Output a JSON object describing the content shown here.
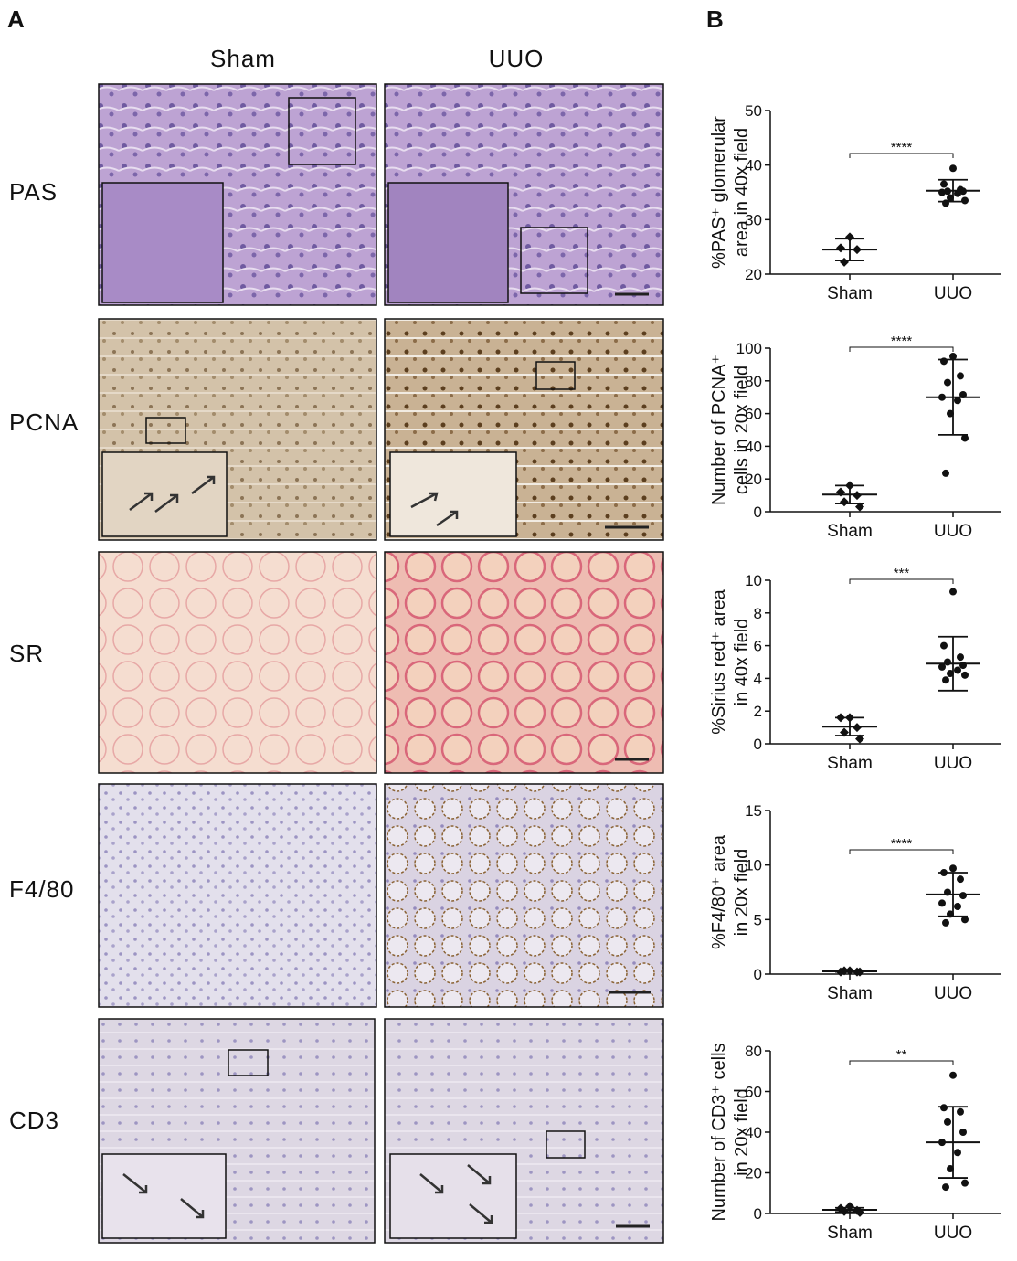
{
  "panels": {
    "a": "A",
    "b": "B"
  },
  "columns": [
    "Sham",
    "UUO"
  ],
  "rows": [
    "PAS",
    "PCNA",
    "SR",
    "F4/80",
    "CD3"
  ],
  "chart_data": [
    {
      "type": "dot",
      "ylabel": [
        "%PAS⁺ glomerular",
        "area in 40x field"
      ],
      "categories": [
        "Sham",
        "UUO"
      ],
      "groups": [
        {
          "values": [
            26.8,
            24.8,
            24.5,
            22.2
          ],
          "mean": 24.5,
          "sd": 2.0
        },
        {
          "values": [
            39.4,
            36.5,
            35.5,
            35.2,
            35.2,
            35.0,
            34.8,
            34.0,
            33.5,
            33.0
          ],
          "mean": 35.3,
          "sd": 2.0
        }
      ],
      "ylim": [
        20,
        50
      ],
      "yticks": [
        20,
        30,
        40,
        50
      ],
      "significance": "****"
    },
    {
      "type": "dot",
      "ylabel": [
        "Number of PCNA⁺",
        "cells in 20x field"
      ],
      "categories": [
        "Sham",
        "UUO"
      ],
      "groups": [
        {
          "values": [
            16,
            12,
            10,
            6,
            3
          ],
          "mean": 10.5,
          "sd": 5.5
        },
        {
          "values": [
            95,
            92,
            83,
            79,
            71.5,
            70,
            68,
            60,
            45,
            23.5
          ],
          "mean": 70,
          "sd": 23
        }
      ],
      "ylim": [
        0,
        100
      ],
      "yticks": [
        0,
        20,
        40,
        60,
        80,
        100
      ],
      "significance": "****"
    },
    {
      "type": "dot",
      "ylabel": [
        "%Sirius red⁺ area",
        "in 40x field"
      ],
      "categories": [
        "Sham",
        "UUO"
      ],
      "groups": [
        {
          "values": [
            1.6,
            1.6,
            1.0,
            0.7,
            0.3
          ],
          "mean": 1.05,
          "sd": 0.55
        },
        {
          "values": [
            9.3,
            6.0,
            5.3,
            5.0,
            4.8,
            4.7,
            4.5,
            4.3,
            4.2,
            3.9
          ],
          "mean": 4.9,
          "sd": 1.65
        }
      ],
      "ylim": [
        0,
        10
      ],
      "yticks": [
        0,
        2,
        4,
        6,
        8,
        10
      ],
      "significance": "***"
    },
    {
      "type": "dot",
      "ylabel": [
        "%F4/80⁺ area",
        "in 20x field"
      ],
      "categories": [
        "Sham",
        "UUO"
      ],
      "groups": [
        {
          "values": [
            0.3,
            0.2,
            0.2,
            0.3,
            0.2
          ],
          "mean": 0.25,
          "sd": 0.05
        },
        {
          "values": [
            9.7,
            9.3,
            8.7,
            7.5,
            7.2,
            6.5,
            6.2,
            5.5,
            5.0,
            4.7
          ],
          "mean": 7.3,
          "sd": 2.0
        }
      ],
      "ylim": [
        0,
        15
      ],
      "yticks": [
        0,
        5,
        10,
        15
      ],
      "significance": "****"
    },
    {
      "type": "dot",
      "ylabel": [
        "Number of CD3⁺ cells",
        "in 20x field"
      ],
      "categories": [
        "Sham",
        "UUO"
      ],
      "groups": [
        {
          "values": [
            3.5,
            2.5,
            1.5,
            1,
            0.5
          ],
          "mean": 1.8,
          "sd": 1.0
        },
        {
          "values": [
            68,
            52,
            50,
            45,
            40,
            35,
            30,
            22,
            15,
            13
          ],
          "mean": 35,
          "sd": 17.5
        }
      ],
      "ylim": [
        0,
        80
      ],
      "yticks": [
        0,
        20,
        40,
        60,
        80
      ],
      "significance": "**"
    }
  ]
}
